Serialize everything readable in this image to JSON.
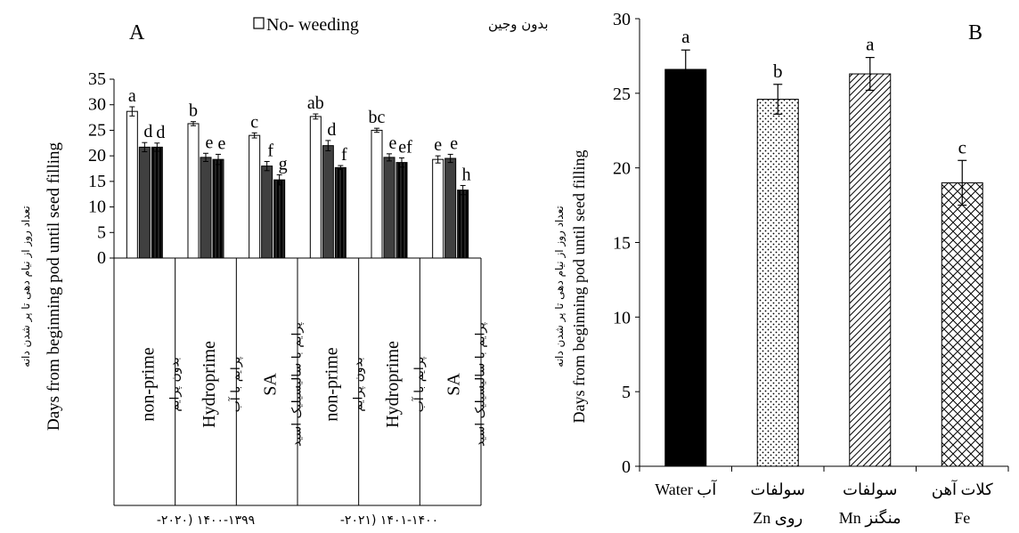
{
  "chart_data": [
    {
      "panel": "A",
      "type": "bar",
      "title": "",
      "ylabel": "Days from beginning pod until seed filling",
      "ylabel_fa": "تعداد روز از نیام دهی تا پر شدن دانه",
      "ylim": [
        0,
        35
      ],
      "yticks": [
        0,
        5,
        10,
        15,
        20,
        25,
        30,
        35
      ],
      "legend_label": "No- weeding",
      "legend_label_fa": "بدون وجین",
      "legend_position": "top",
      "categories": [
        {
          "en": "non-prime",
          "fa": "بدون پرایم"
        },
        {
          "en": "Hydroprime",
          "fa": "پرایم با آب"
        },
        {
          "en": "SA",
          "fa": "پرایم با سالیسیلیک اسید"
        },
        {
          "en": "non-prime",
          "fa": "بدون پرایم"
        },
        {
          "en": "Hydroprime",
          "fa": "پرایم با آب"
        },
        {
          "en": "SA",
          "fa": "پرایم با سالیسیلیک اسید"
        }
      ],
      "years": [
        "۱۴۰۰-۱۳۹۹ (۲۰۲۰-",
        "۱۴۰۱-۱۴۰۰ (۲۰۲۱-"
      ],
      "series": [
        {
          "name": "No- weeding",
          "color": "#ffffff",
          "values": [
            28.7,
            26.3,
            24.0,
            27.7,
            25.0,
            19.3
          ],
          "errors": [
            0.9,
            0.4,
            0.5,
            0.5,
            0.4,
            0.7
          ]
        },
        {
          "color": "#404040",
          "values": [
            21.7,
            19.7,
            18.0,
            22.0,
            19.7,
            19.5
          ],
          "errors": [
            0.9,
            0.8,
            0.9,
            1.0,
            0.7,
            0.8
          ]
        },
        {
          "color": "#000000",
          "pattern": "dashed",
          "values": [
            21.7,
            19.3,
            15.3,
            17.7,
            18.7,
            13.3
          ],
          "errors": [
            0.8,
            1.0,
            1.0,
            0.4,
            0.9,
            0.9
          ]
        }
      ],
      "letters": [
        [
          "a",
          "d",
          "d"
        ],
        [
          "b",
          "e",
          "e"
        ],
        [
          "c",
          "f",
          "g"
        ],
        [
          "ab",
          "d",
          "f"
        ],
        [
          "bc",
          "e",
          "ef"
        ],
        [
          "e",
          "e",
          "h"
        ]
      ]
    },
    {
      "panel": "B",
      "type": "bar",
      "title": "",
      "ylabel": "Days from beginning pod until seed filling",
      "ylabel_fa": "تعداد روز از نیام دهی تا پر شدن دانه",
      "ylim": [
        0,
        30
      ],
      "yticks": [
        0,
        5,
        10,
        15,
        20,
        25,
        30
      ],
      "categories": [
        {
          "line1": "آب Water",
          "line2": ""
        },
        {
          "line1": "سولفات",
          "line2": "روی Zn"
        },
        {
          "line1": "سولفات",
          "line2": "منگنز Mn"
        },
        {
          "line1": "کلات آهن",
          "line2": "Fe"
        }
      ],
      "values": [
        26.6,
        24.6,
        26.3,
        19.0
      ],
      "errors": [
        1.3,
        1.0,
        1.1,
        1.5
      ],
      "letters": [
        "a",
        "b",
        "a",
        "c"
      ],
      "patterns": [
        "solid",
        "dots",
        "diagonal",
        "crosshatch"
      ]
    }
  ]
}
